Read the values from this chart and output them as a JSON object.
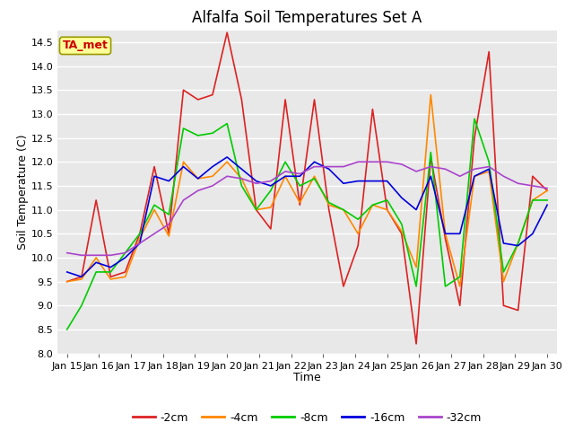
{
  "title": "Alfalfa Soil Temperatures Set A",
  "xlabel": "Time",
  "ylabel": "Soil Temperature (C)",
  "ylim": [
    8.0,
    14.75
  ],
  "yticks": [
    8.0,
    8.5,
    9.0,
    9.5,
    10.0,
    10.5,
    11.0,
    11.5,
    12.0,
    12.5,
    13.0,
    13.5,
    14.0,
    14.5
  ],
  "xtick_labels": [
    "Jan 15",
    "Jan 16",
    "Jan 17",
    "Jan 18",
    "Jan 19",
    "Jan 20",
    "Jan 21",
    "Jan 22",
    "Jan 23",
    "Jan 24",
    "Jan 25",
    "Jan 26",
    "Jan 27",
    "Jan 28",
    "Jan 29",
    "Jan 30"
  ],
  "fig_bg_color": "#ffffff",
  "plot_bg_color": "#e8e8e8",
  "grid_color": "#ffffff",
  "annotation_label": "TA_met",
  "annotation_color": "#cc0000",
  "annotation_bg": "#ffff99",
  "annotation_edge": "#999900",
  "series": {
    "-2cm": {
      "color": "#dd2222",
      "data": [
        9.5,
        9.6,
        11.2,
        9.6,
        9.7,
        10.5,
        11.9,
        10.5,
        13.5,
        13.3,
        13.4,
        14.7,
        13.3,
        11.0,
        10.6,
        13.3,
        11.1,
        13.3,
        11.0,
        9.4,
        10.25,
        13.1,
        11.0,
        10.5,
        8.2,
        12.1,
        10.4,
        9.0,
        12.5,
        14.3,
        9.0,
        8.9,
        11.7,
        11.4
      ]
    },
    "-4cm": {
      "color": "#ff8800",
      "data": [
        9.5,
        9.55,
        10.0,
        9.55,
        9.6,
        10.4,
        11.0,
        10.45,
        12.0,
        11.65,
        11.7,
        12.0,
        11.65,
        11.0,
        11.05,
        11.7,
        11.15,
        11.7,
        11.1,
        11.0,
        10.5,
        11.1,
        11.0,
        10.55,
        9.8,
        13.4,
        10.5,
        9.4,
        11.7,
        11.8,
        9.5,
        10.3,
        11.2,
        11.4
      ]
    },
    "-8cm": {
      "color": "#00cc00",
      "data": [
        8.5,
        9.0,
        9.7,
        9.7,
        10.1,
        10.5,
        11.1,
        10.9,
        12.7,
        12.55,
        12.6,
        12.8,
        11.5,
        11.0,
        11.4,
        12.0,
        11.5,
        11.65,
        11.15,
        11.0,
        10.8,
        11.1,
        11.2,
        10.7,
        9.4,
        12.2,
        9.4,
        9.6,
        12.9,
        12.0,
        9.7,
        10.3,
        11.2,
        11.2
      ]
    },
    "-16cm": {
      "color": "#0000dd",
      "data": [
        9.7,
        9.6,
        9.9,
        9.8,
        10.0,
        10.3,
        11.7,
        11.6,
        11.9,
        11.65,
        11.9,
        12.1,
        11.85,
        11.6,
        11.5,
        11.7,
        11.7,
        12.0,
        11.85,
        11.55,
        11.6,
        11.6,
        11.6,
        11.25,
        11.0,
        11.7,
        10.5,
        10.5,
        11.7,
        11.85,
        10.3,
        10.25,
        10.5,
        11.1
      ]
    },
    "-32cm": {
      "color": "#aa44cc",
      "data": [
        10.1,
        10.05,
        10.05,
        10.05,
        10.1,
        10.3,
        10.5,
        10.7,
        11.2,
        11.4,
        11.5,
        11.7,
        11.65,
        11.55,
        11.6,
        11.8,
        11.75,
        11.9,
        11.9,
        11.9,
        12.0,
        12.0,
        12.0,
        11.95,
        11.8,
        11.9,
        11.85,
        11.7,
        11.85,
        11.9,
        11.7,
        11.55,
        11.5,
        11.45
      ]
    }
  },
  "legend_entries": [
    "-2cm",
    "-4cm",
    "-8cm",
    "-16cm",
    "-32cm"
  ],
  "legend_colors": [
    "#dd2222",
    "#ff8800",
    "#00cc00",
    "#0000dd",
    "#aa44cc"
  ],
  "title_fontsize": 12,
  "label_fontsize": 9,
  "tick_fontsize": 8
}
